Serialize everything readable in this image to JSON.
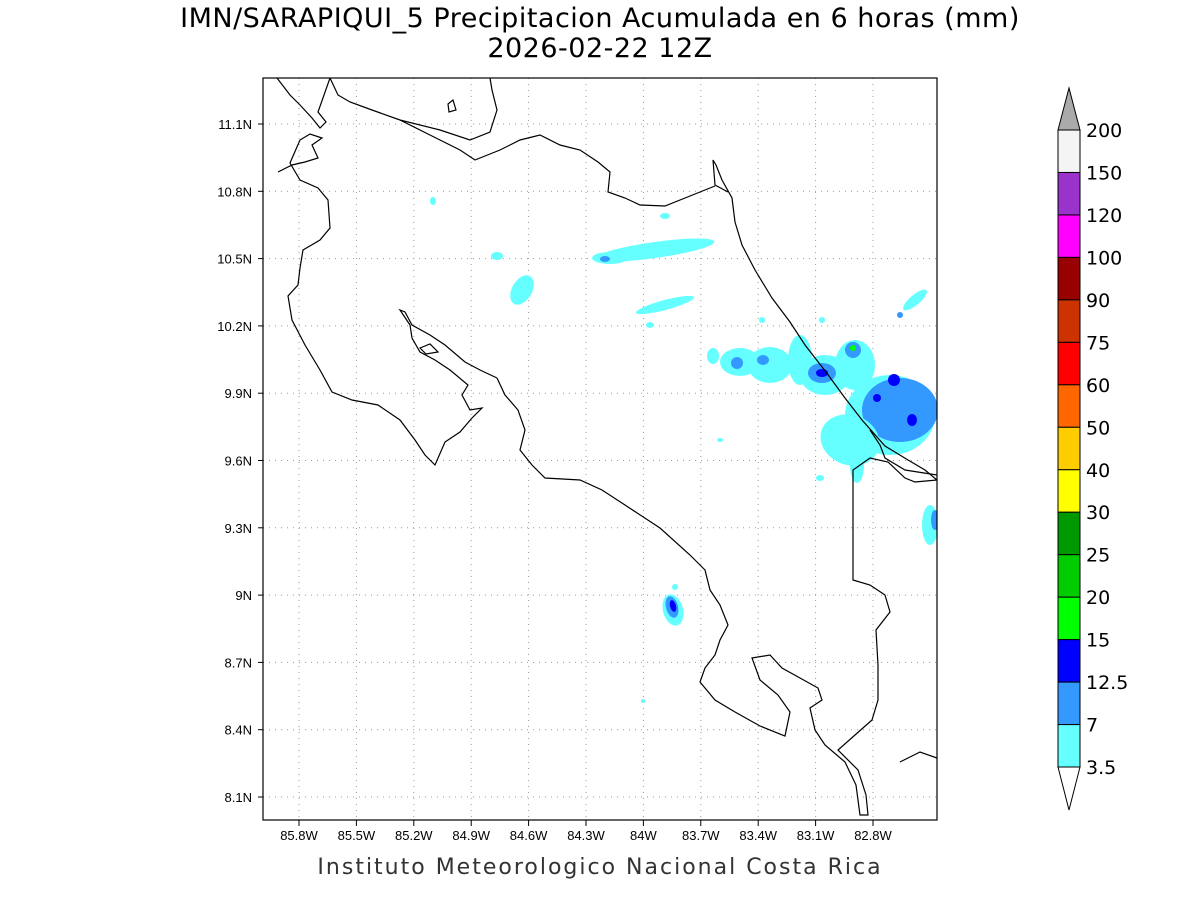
{
  "title": {
    "line1": "IMN/SARAPIQUI_5 Precipitacion Acumulada en 6 horas (mm)",
    "line2": "2026-02-22 12Z"
  },
  "footer": "Instituto Meteorologico Nacional Costa Rica",
  "map": {
    "lat_ticks": [
      "11.1N",
      "10.8N",
      "10.5N",
      "10.2N",
      "9.9N",
      "9.6N",
      "9.3N",
      "9N",
      "8.7N",
      "8.4N",
      "8.1N"
    ],
    "lon_ticks": [
      "85.8W",
      "85.5W",
      "85.2W",
      "84.9W",
      "84.6W",
      "84.3W",
      "84W",
      "83.7W",
      "83.4W",
      "83.1W",
      "82.8W"
    ]
  },
  "colorbar": {
    "labels": [
      "200",
      "150",
      "120",
      "100",
      "90",
      "75",
      "60",
      "50",
      "40",
      "30",
      "25",
      "20",
      "15",
      "12.5",
      "7",
      "3.5"
    ],
    "colors": [
      "#f4f4f4",
      "#9933cc",
      "#ff00ff",
      "#990000",
      "#cc3300",
      "#ff0000",
      "#ff6600",
      "#ffcc00",
      "#ffff00",
      "#009900",
      "#00cc00",
      "#00ff00",
      "#0000ff",
      "#3399ff",
      "#66ffff"
    ],
    "over_color": "#aaaaaa",
    "under_color": "#ffffff"
  }
}
